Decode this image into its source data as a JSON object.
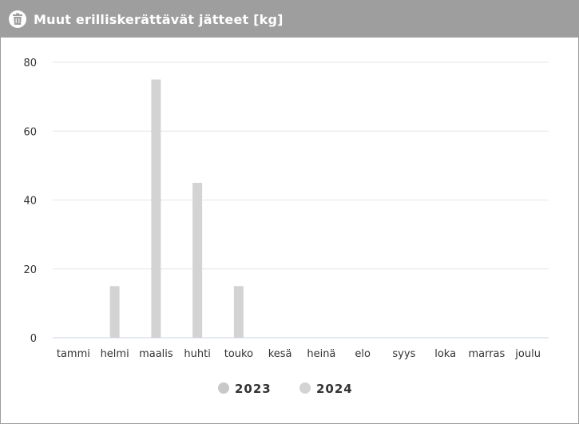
{
  "header": {
    "title": "Muut erilliskerättävät jätteet [kg]",
    "icon": "trash-bin-icon"
  },
  "colors": {
    "header_bg": "#9e9e9e",
    "series_2023": "#c8c8c8",
    "series_2024": "#d3d3d3",
    "grid": "#e6e6e6",
    "axis": "#ccd6eb"
  },
  "chart_data": {
    "type": "bar",
    "title": "Muut erilliskerättävät jätteet [kg]",
    "categories": [
      "tammi",
      "helmi",
      "maalis",
      "huhti",
      "touko",
      "kesä",
      "heinä",
      "elo",
      "syys",
      "loka",
      "marras",
      "joulu"
    ],
    "series": [
      {
        "name": "2023",
        "values": [
          0,
          0,
          0,
          0,
          0,
          0,
          0,
          0,
          0,
          0,
          0,
          0
        ]
      },
      {
        "name": "2024",
        "values": [
          0,
          15,
          75,
          45,
          15,
          0,
          0,
          0,
          0,
          0,
          0,
          0
        ]
      }
    ],
    "yticks": [
      0,
      20,
      40,
      60,
      80
    ],
    "ylim": [
      0,
      80
    ],
    "grid": true,
    "legend_position": "bottom"
  }
}
